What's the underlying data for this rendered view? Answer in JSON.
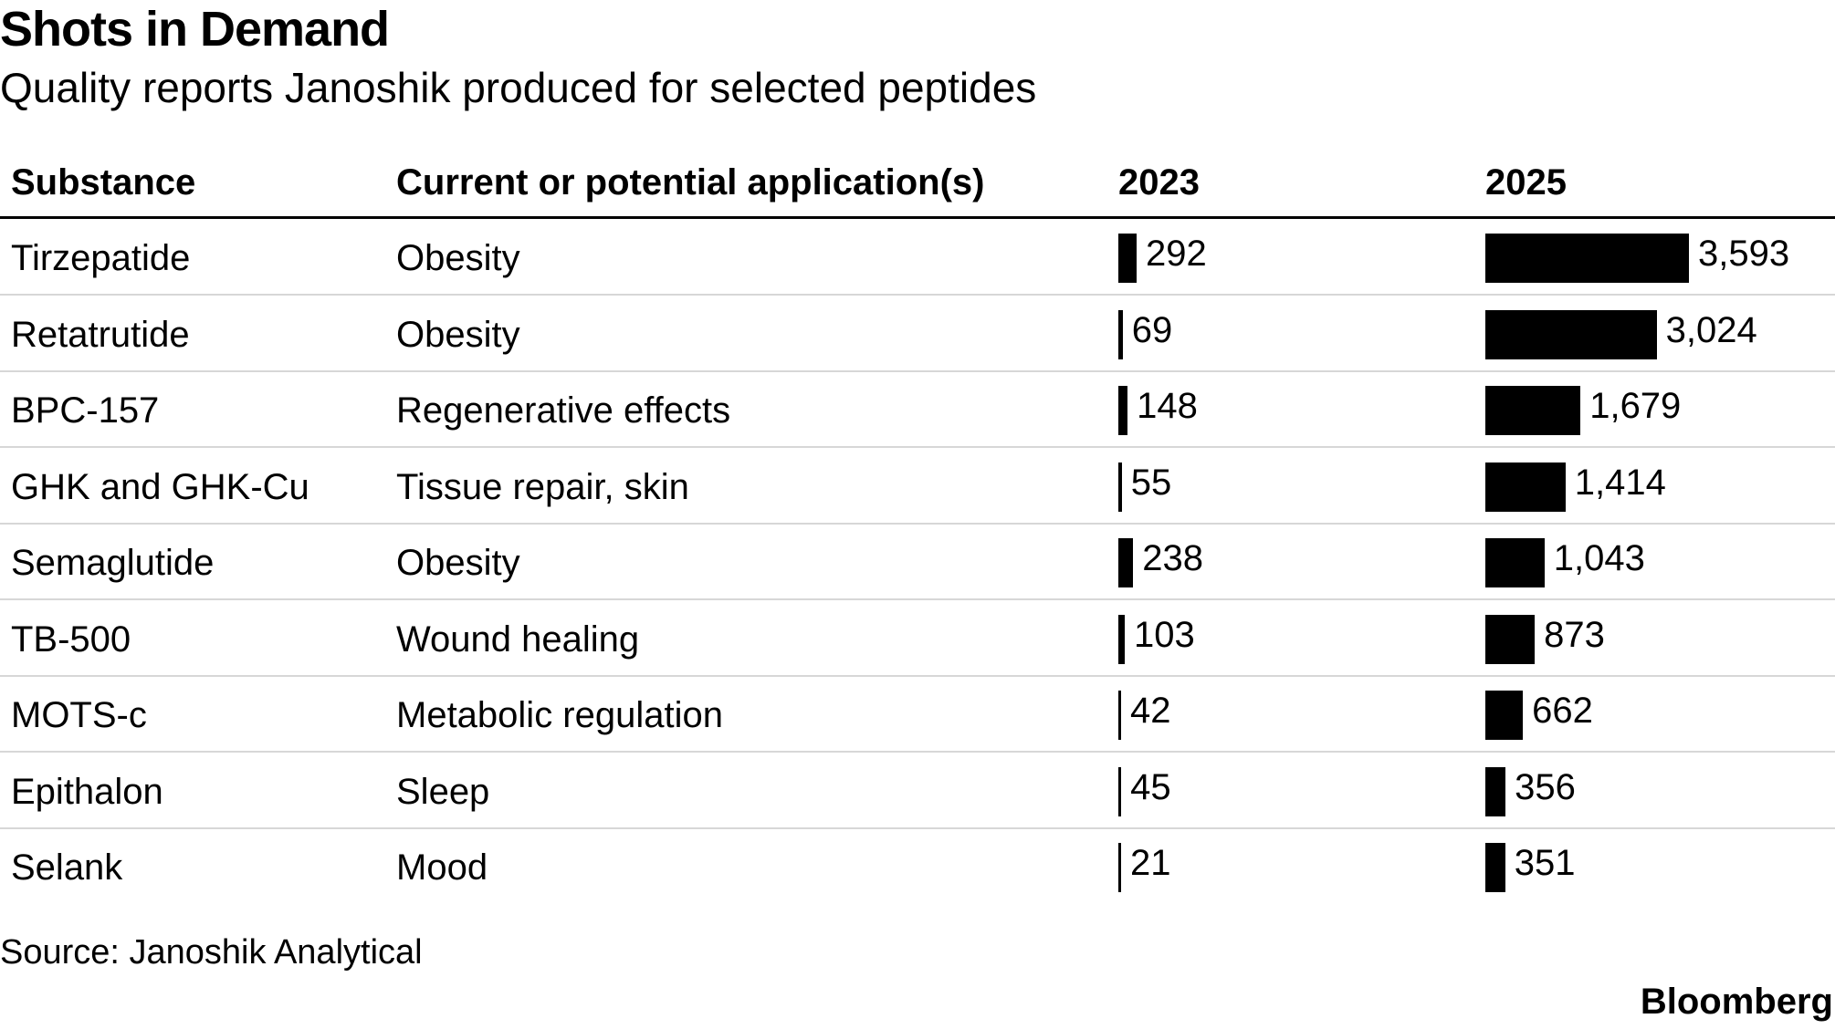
{
  "chart_data": {
    "type": "table",
    "title": "Shots in Demand",
    "subtitle": "Quality reports Janoshik produced for selected peptides",
    "columns": [
      "Substance",
      "Current or potential application(s)",
      "2023",
      "2025"
    ],
    "rows": [
      {
        "substance": "Tirzepatide",
        "application": "Obesity",
        "v2023": 292,
        "v2025": 3593,
        "label2023": "292",
        "label2025": "3,593"
      },
      {
        "substance": "Retatrutide",
        "application": "Obesity",
        "v2023": 69,
        "v2025": 3024,
        "label2023": "69",
        "label2025": "3,024"
      },
      {
        "substance": "BPC-157",
        "application": "Regenerative effects",
        "v2023": 148,
        "v2025": 1679,
        "label2023": "148",
        "label2025": "1,679"
      },
      {
        "substance": "GHK and GHK-Cu",
        "application": "Tissue repair, skin",
        "v2023": 55,
        "v2025": 1414,
        "label2023": "55",
        "label2025": "1,414"
      },
      {
        "substance": "Semaglutide",
        "application": "Obesity",
        "v2023": 238,
        "v2025": 1043,
        "label2023": "238",
        "label2025": "1,043"
      },
      {
        "substance": "TB-500",
        "application": "Wound healing",
        "v2023": 103,
        "v2025": 873,
        "label2023": "103",
        "label2025": "873"
      },
      {
        "substance": "MOTS-c",
        "application": "Metabolic regulation",
        "v2023": 42,
        "v2025": 662,
        "label2023": "42",
        "label2025": "662"
      },
      {
        "substance": "Epithalon",
        "application": "Sleep",
        "v2023": 45,
        "v2025": 356,
        "label2023": "45",
        "label2025": "356"
      },
      {
        "substance": "Selank",
        "application": "Mood",
        "v2023": 21,
        "v2025": 351,
        "label2023": "21",
        "label2025": "351"
      }
    ],
    "bar_color": "#000000",
    "source": "Source: Janoshik Analytical",
    "brand": "Bloomberg"
  }
}
